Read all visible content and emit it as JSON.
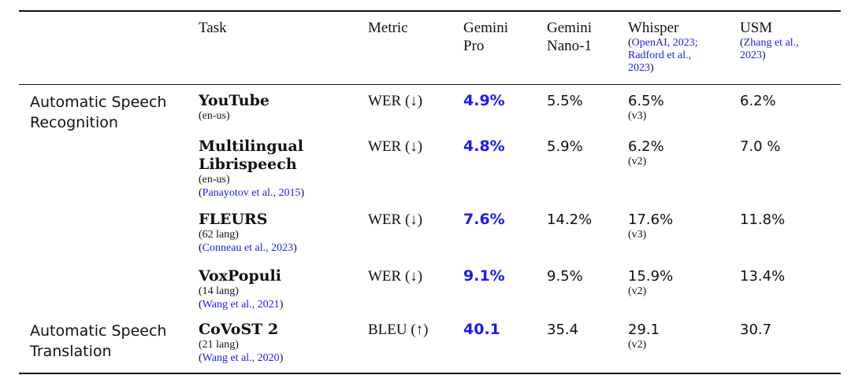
{
  "header": {
    "task": "Task",
    "metric": "Metric",
    "gemini_pro": [
      "Gemini",
      "Pro"
    ],
    "gemini_nano": [
      "Gemini",
      "Nano-1"
    ],
    "whisper": "Whisper",
    "whisper_cite": [
      "OpenAI, 2023;",
      "Radford et al.,",
      "2023"
    ],
    "usm": "USM",
    "usm_cite": [
      "Zhang et al.,",
      "2023"
    ]
  },
  "categories": [
    "Automatic Speech Recognition",
    "Automatic Speech Translation"
  ],
  "rows": [
    {
      "category_lines": [
        "Automatic Speech",
        "Recognition"
      ],
      "task_lines": [
        "YouTube"
      ],
      "task_sub": "(en-us)",
      "citation": "",
      "metric": "WER (↓)",
      "gemini_pro": "4.9%",
      "gemini_nano": "5.5%",
      "whisper": "6.5%",
      "whisper_version": "(v3)",
      "usm": "6.2%"
    },
    {
      "category_lines": [],
      "task_lines": [
        "Multilingual",
        "Librispeech"
      ],
      "task_sub": "(en-us)",
      "citation": "Panayotov et al., 2015",
      "metric": "WER (↓)",
      "gemini_pro": "4.8%",
      "gemini_nano": "5.9%",
      "whisper": "6.2%",
      "whisper_version": "(v2)",
      "usm": "7.0 %"
    },
    {
      "category_lines": [],
      "task_lines": [
        "FLEURS"
      ],
      "task_sub": "(62 lang)",
      "citation": "Conneau et al., 2023",
      "metric": "WER (↓)",
      "gemini_pro": "7.6%",
      "gemini_nano": "14.2%",
      "whisper": "17.6%",
      "whisper_version": "(v3)",
      "usm": "11.8%"
    },
    {
      "category_lines": [],
      "task_lines": [
        "VoxPopuli"
      ],
      "task_sub": "(14 lang)",
      "citation": "Wang et al., 2021",
      "metric": "WER (↓)",
      "gemini_pro": "9.1%",
      "gemini_nano": "9.5%",
      "whisper": "15.9%",
      "whisper_version": "(v2)",
      "usm": "13.4%"
    },
    {
      "category_lines": [
        "Automatic Speech",
        "Translation"
      ],
      "task_lines": [
        "CoVoST 2"
      ],
      "task_sub": "(21 lang)",
      "citation": "Wang et al., 2020",
      "metric": "BLEU (↑)",
      "gemini_pro": "40.1",
      "gemini_nano": "35.4",
      "whisper": "29.1",
      "whisper_version": "(v2)",
      "usm": "30.7"
    }
  ]
}
